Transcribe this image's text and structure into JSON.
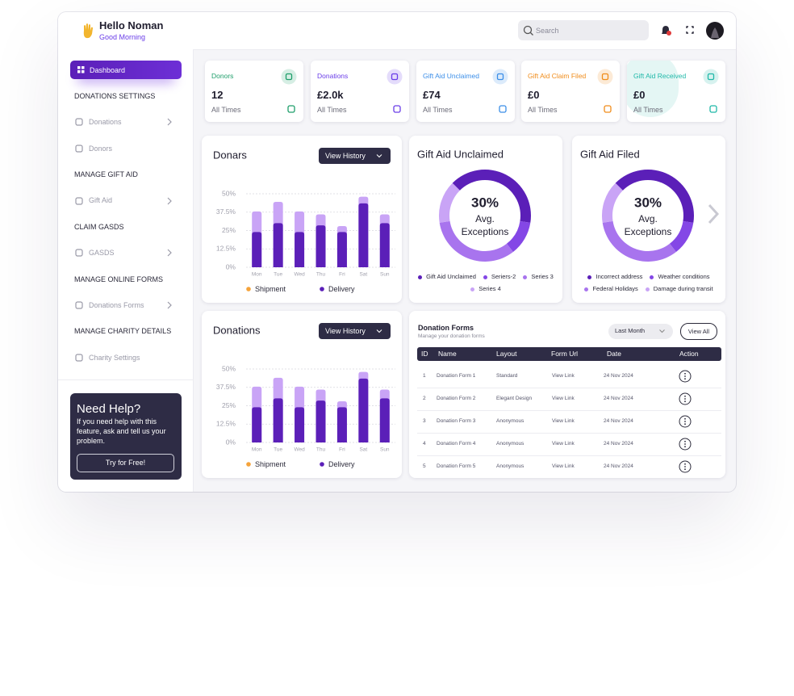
{
  "header": {
    "greeting": "Hello Noman",
    "subtitle": "Good Morning",
    "search_placeholder": "Search"
  },
  "sidebar": {
    "active": "Dashboard",
    "groups": [
      {
        "heading": "DONATIONS SETTINGS",
        "items": [
          {
            "label": "Donations",
            "expandable": true
          },
          {
            "label": "Donors",
            "expandable": false
          }
        ]
      },
      {
        "heading": "MANAGE GIFT AID",
        "items": [
          {
            "label": "Gift Aid",
            "expandable": true
          }
        ]
      },
      {
        "heading": "CLAIM GASDS",
        "items": [
          {
            "label": "GASDS",
            "expandable": true
          }
        ]
      },
      {
        "heading": "MANAGE ONLINE FORMS",
        "items": [
          {
            "label": "Donations Forms",
            "expandable": true
          }
        ]
      },
      {
        "heading": "MANAGE CHARITY DETAILS",
        "items": [
          {
            "label": "Charity Settings",
            "expandable": false
          }
        ]
      }
    ]
  },
  "help": {
    "title": "Need Help?",
    "text": "If you need help with this feature, ask and tell us your problem.",
    "button": "Try for Free!"
  },
  "stats": [
    {
      "title": "Donors",
      "value": "12",
      "period": "All Times",
      "color": "#1e9e6a"
    },
    {
      "title": "Donations",
      "value": "£2.0k",
      "period": "All Times",
      "color": "#6a3de8"
    },
    {
      "title": "Gift Aid Unclaimed",
      "value": "£74",
      "period": "All Times",
      "color": "#3b8ee8"
    },
    {
      "title": "Gift Aid Claim Filed",
      "value": "£0",
      "period": "All Times",
      "color": "#f08c1a"
    },
    {
      "title": "Gift Aid Received",
      "value": "£0",
      "period": "All Times",
      "color": "#1fb8a8"
    }
  ],
  "chart_data": [
    {
      "type": "bar",
      "title": "Donars",
      "button": "View History",
      "categories": [
        "Mon",
        "Tue",
        "Wed",
        "Thu",
        "Fri",
        "Sat",
        "Sun"
      ],
      "series": [
        {
          "name": "Shipment",
          "color": "#c9a4f6",
          "legend_color": "#f5a33a",
          "values": [
            38,
            44.5,
            38,
            36,
            28,
            48,
            36
          ]
        },
        {
          "name": "Delivery",
          "color": "#5b1fb8",
          "legend_color": "#5b1fb8",
          "values": [
            24,
            30,
            24,
            28.5,
            24,
            43.5,
            30
          ]
        }
      ],
      "ylim": [
        0,
        50
      ],
      "yticks": [
        {
          "value": 0,
          "label": "0%"
        },
        {
          "value": 12.5,
          "label": "12.5%"
        },
        {
          "value": 25,
          "label": "25%"
        },
        {
          "value": 37.5,
          "label": "37.5%"
        },
        {
          "value": 50,
          "label": "50%"
        }
      ],
      "grid": true
    },
    {
      "type": "bar",
      "title": "Donations",
      "button": "View History",
      "categories": [
        "Mon",
        "Tue",
        "Wed",
        "Thu",
        "Fri",
        "Sat",
        "Sun"
      ],
      "series": [
        {
          "name": "Shipment",
          "color": "#c9a4f6",
          "legend_color": "#f5a33a",
          "values": [
            38,
            44,
            38,
            36,
            28,
            48,
            36
          ]
        },
        {
          "name": "Delivery",
          "color": "#5b1fb8",
          "legend_color": "#5b1fb8",
          "values": [
            24,
            30,
            24,
            28.5,
            24,
            43.5,
            30
          ]
        }
      ],
      "ylim": [
        0,
        50
      ],
      "yticks": [
        {
          "value": 0,
          "label": "0%"
        },
        {
          "value": 12.5,
          "label": "12.5%"
        },
        {
          "value": 25,
          "label": "25%"
        },
        {
          "value": 37.5,
          "label": "37.5%"
        },
        {
          "value": 50,
          "label": "50%"
        }
      ],
      "grid": true
    },
    {
      "type": "donut",
      "title": "Gift Aid Unclaimed",
      "center": [
        "30%",
        "Avg.",
        "Exceptions"
      ],
      "categories": [
        "Gift Aid Unclaimed",
        "Seriers-2",
        "Series 3",
        "Series 4"
      ],
      "values": [
        40,
        12,
        33,
        15
      ],
      "colors": [
        "#5b1fb8",
        "#8447e6",
        "#a874ee",
        "#c9a4f6"
      ]
    },
    {
      "type": "donut",
      "title": "Gift Aid Filed",
      "center": [
        "30%",
        "Avg.",
        "Exceptions"
      ],
      "categories": [
        "Incorrect address",
        "Weather conditions",
        "Federal Holidays",
        "Damage during transit"
      ],
      "values": [
        40,
        12,
        33,
        15
      ],
      "colors": [
        "#5b1fb8",
        "#8447e6",
        "#a874ee",
        "#c9a4f6"
      ]
    }
  ],
  "table": {
    "title": "Donation Forms",
    "subtitle": "Manage your donation forms",
    "filter": "Last Month",
    "action": "View All",
    "columns": [
      "ID",
      "Name",
      "Layout",
      "Form Url",
      "Date",
      "Action"
    ],
    "rows": [
      [
        "1",
        "Donation Form 1",
        "Standard",
        "View Link",
        "24 Nov 2024"
      ],
      [
        "2",
        "Donation Form 2",
        "Elegant Design",
        "View Link",
        "24 Nov 2024"
      ],
      [
        "3",
        "Donation Form 3",
        "Anonymous",
        "View Link",
        "24 Nov 2024"
      ],
      [
        "4",
        "Donation Form 4",
        "Anonymous",
        "View Link",
        "24 Nov 2024"
      ],
      [
        "5",
        "Donation Form 5",
        "Anonymous",
        "View Link",
        "24 Nov 2024"
      ]
    ]
  }
}
